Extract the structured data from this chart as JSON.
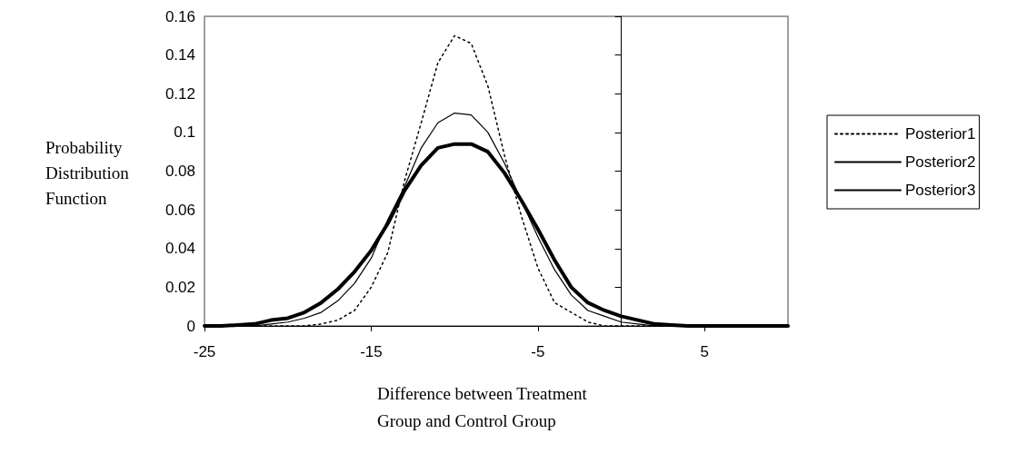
{
  "chart_data": {
    "type": "line",
    "xlabel": "Difference between Treatment\nGroup and Control Group",
    "ylabel": "Probability\nDistribution\nFunction",
    "xlim": [
      -25,
      10
    ],
    "xticks": [
      -25,
      -15,
      -5,
      5
    ],
    "ylim": [
      0,
      0.16
    ],
    "yticks": [
      0,
      0.02,
      0.04,
      0.06,
      0.08,
      0.1,
      0.12,
      0.14,
      0.16
    ],
    "grid": false,
    "legend": "right",
    "marker": "none",
    "series": [
      {
        "name": "Posterior1",
        "color": "#000000",
        "line_style": "dotted",
        "x": [
          -25,
          -24,
          -23,
          -22,
          -21,
          -20,
          -19,
          -18,
          -17,
          -16,
          -15,
          -14,
          -13,
          -12,
          -11,
          -10,
          -9,
          -8,
          -7,
          -6,
          -5,
          -4,
          -3,
          -2,
          -1,
          0,
          1,
          2,
          3,
          4,
          5,
          6,
          7,
          8,
          9,
          10
        ],
        "values": [
          0,
          0,
          0,
          0,
          0,
          0,
          0,
          0.001,
          0.003,
          0.008,
          0.02,
          0.038,
          0.075,
          0.105,
          0.136,
          0.15,
          0.146,
          0.124,
          0.088,
          0.057,
          0.03,
          0.012,
          0.007,
          0.002,
          0,
          0,
          0,
          0,
          0,
          0,
          0,
          0,
          0,
          0,
          0,
          0
        ]
      },
      {
        "name": "Posterior2",
        "color": "#000000",
        "line_style": "solid",
        "x": [
          -25,
          -24,
          -23,
          -22,
          -21,
          -20,
          -19,
          -18,
          -17,
          -16,
          -15,
          -14,
          -13,
          -12,
          -11,
          -10,
          -9,
          -8,
          -7,
          -6,
          -5,
          -4,
          -3,
          -2,
          -1,
          0,
          1,
          2,
          3,
          4,
          5,
          6,
          7,
          8,
          9,
          10
        ],
        "values": [
          0,
          0,
          0,
          0,
          0.001,
          0.002,
          0.004,
          0.007,
          0.013,
          0.022,
          0.035,
          0.055,
          0.072,
          0.092,
          0.105,
          0.11,
          0.109,
          0.1,
          0.084,
          0.065,
          0.046,
          0.029,
          0.016,
          0.008,
          0.005,
          0.002,
          0.001,
          0,
          0,
          0,
          0,
          0,
          0,
          0,
          0,
          0
        ]
      },
      {
        "name": "Posterior3",
        "color": "#000000",
        "line_style": "solid",
        "x": [
          -25,
          -24,
          -23,
          -22,
          -21,
          -20,
          -19,
          -18,
          -17,
          -16,
          -15,
          -14,
          -13,
          -12,
          -11,
          -10,
          -9,
          -8,
          -7,
          -6,
          -5,
          -4,
          -3,
          -2,
          -1,
          0,
          1,
          2,
          3,
          4,
          5,
          6,
          7,
          8,
          9,
          10
        ],
        "values": [
          0,
          0,
          0.0005,
          0.001,
          0.003,
          0.004,
          0.007,
          0.012,
          0.019,
          0.028,
          0.039,
          0.053,
          0.07,
          0.083,
          0.092,
          0.094,
          0.094,
          0.09,
          0.079,
          0.065,
          0.05,
          0.034,
          0.02,
          0.012,
          0.008,
          0.005,
          0.003,
          0.001,
          0.0005,
          0,
          0,
          0,
          0,
          0,
          0,
          0
        ]
      }
    ]
  }
}
